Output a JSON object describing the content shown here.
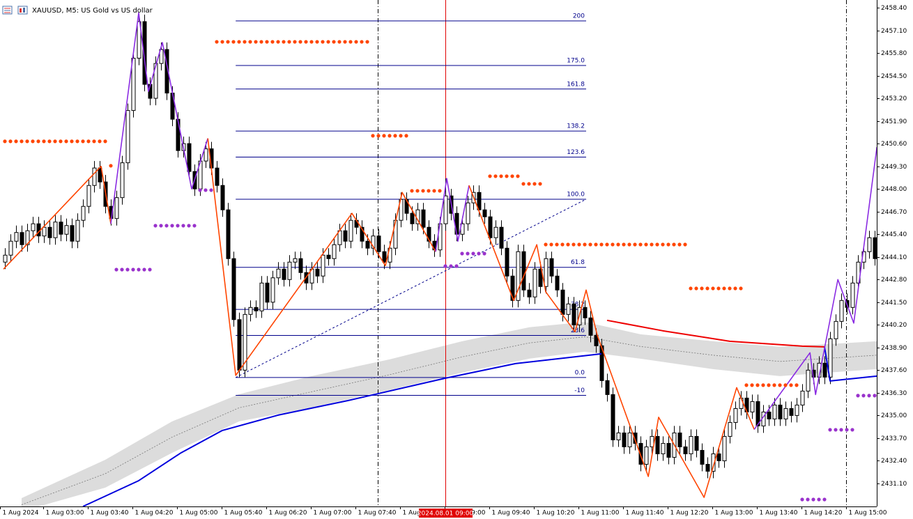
{
  "chart_data": {
    "type": "candlestick",
    "title": "XAUUSD, M5:  US Gold vs US dollar",
    "categories": [
      "1 Aug 2024",
      null,
      null,
      null,
      null,
      null,
      null,
      "1 Aug 03:00",
      null,
      null,
      null,
      null,
      null,
      null,
      null,
      "1 Aug 03:40",
      null,
      null,
      null,
      null,
      null,
      null,
      null,
      "1 Aug 04:20",
      null,
      null,
      null,
      null,
      null,
      null,
      null,
      "1 Aug 05:00",
      null,
      null,
      null,
      null,
      null,
      null,
      null,
      "1 Aug 05:40",
      null,
      null,
      null,
      null,
      null,
      null,
      null,
      "1 Aug 06:20",
      null,
      null,
      null,
      null,
      null,
      null,
      null,
      "1 Aug 07:00",
      null,
      null,
      null,
      null,
      null,
      null,
      null,
      "1 Aug 07:40",
      null,
      null,
      null,
      null,
      null,
      null,
      null,
      "1 Aug 08:20",
      null,
      null,
      null,
      null,
      null,
      null,
      null,
      "1 Aug 09:00",
      null,
      null,
      null,
      null,
      null,
      null,
      null,
      "1 Aug 09:40",
      null,
      null,
      null,
      null,
      null,
      null,
      null,
      "1 Aug 10:20",
      null,
      null,
      null,
      null,
      null,
      null,
      null,
      "1 Aug 11:00",
      null,
      null,
      null,
      null,
      null,
      null,
      null,
      "1 Aug 11:40",
      null,
      null,
      null,
      null,
      null,
      null,
      null,
      "1 Aug 12:20",
      null,
      null,
      null,
      null,
      null,
      null,
      null,
      "1 Aug 13:00",
      null,
      null,
      null,
      null,
      null,
      null,
      null,
      "1 Aug 13:40",
      null,
      null,
      null,
      null,
      null,
      null,
      null,
      "1 Aug 14:20",
      null,
      null,
      null,
      null,
      null,
      null,
      null,
      "1 Aug 15:00",
      null,
      null,
      null,
      null,
      null
    ],
    "open": [
      2443.8,
      2444.2,
      2445.0,
      2445.5,
      2444.8,
      2445.6,
      2446.0,
      2445.3,
      2445.8,
      2445.2,
      2446.1,
      2445.4,
      2445.9,
      2445.0,
      2446.2,
      2447.0,
      2448.2,
      2449.2,
      2448.4,
      2447.0,
      2446.3,
      2447.5,
      2449.5,
      2452.5,
      2455.5,
      2457.6,
      2454.0,
      2453.2,
      2455.2,
      2456.0,
      2453.5,
      2452.0,
      2450.2,
      2450.6,
      2449.0,
      2448.0,
      2449.6,
      2450.3,
      2449.2,
      2448.2,
      2446.8,
      2444.0,
      2440.5,
      2437.6,
      2440.8,
      2441.2,
      2441.0,
      2442.6,
      2441.5,
      2442.9,
      2443.4,
      2442.8,
      2443.8,
      2444.0,
      2443.2,
      2442.6,
      2443.4,
      2443.0,
      2444.2,
      2444.0,
      2444.8,
      2445.6,
      2445.0,
      2446.2,
      2445.8,
      2445.0,
      2444.6,
      2445.3,
      2444.4,
      2443.8,
      2444.6,
      2446.2,
      2447.4,
      2446.6,
      2446.0,
      2446.8,
      2445.8,
      2445.0,
      2444.5,
      2446.0,
      2447.6,
      2446.6,
      2445.4,
      2446.0,
      2447.2,
      2447.8,
      2446.8,
      2446.4,
      2445.2,
      2445.8,
      2444.6,
      2443.0,
      2441.6,
      2444.4,
      2442.2,
      2441.8,
      2443.4,
      2442.4,
      2444.0,
      2443.0,
      2442.2,
      2440.8,
      2441.4,
      2440.2,
      2441.2,
      2440.6,
      2439.6,
      2439.0,
      2437.0,
      2436.2,
      2433.6,
      2434.0,
      2433.2,
      2434.0,
      2433.4,
      2432.2,
      2433.2,
      2433.8,
      2432.8,
      2433.4,
      2432.6,
      2434.0,
      2433.2,
      2432.8,
      2433.8,
      2433.0,
      2432.2,
      2431.8,
      2432.8,
      2432.4,
      2433.8,
      2434.6,
      2435.4,
      2436.0,
      2435.2,
      2435.8,
      2434.4,
      2435.2,
      2434.8,
      2435.6,
      2434.8,
      2435.4,
      2435.0,
      2435.6,
      2436.4,
      2437.6,
      2437.2,
      2438.0,
      2437.2,
      2439.4,
      2440.4,
      2441.6,
      2441.2,
      2442.6,
      2443.8,
      2444.4,
      2445.2
    ],
    "high": [
      2444.6,
      2445.4,
      2445.9,
      2445.9,
      2446.0,
      2446.4,
      2446.4,
      2446.2,
      2446.2,
      2446.5,
      2446.5,
      2446.3,
      2446.3,
      2446.6,
      2447.4,
      2448.6,
      2449.6,
      2449.6,
      2448.8,
      2447.4,
      2447.9,
      2449.9,
      2452.9,
      2455.9,
      2458.0,
      2458.0,
      2454.4,
      2455.6,
      2456.4,
      2456.4,
      2453.9,
      2452.4,
      2451.0,
      2451.0,
      2449.4,
      2450.0,
      2450.7,
      2450.7,
      2449.6,
      2448.6,
      2447.2,
      2444.4,
      2440.9,
      2441.2,
      2441.6,
      2441.6,
      2443.0,
      2443.0,
      2443.3,
      2443.8,
      2443.8,
      2444.2,
      2444.4,
      2444.4,
      2443.6,
      2443.8,
      2443.8,
      2444.6,
      2444.6,
      2445.2,
      2446.0,
      2446.0,
      2446.6,
      2446.6,
      2446.2,
      2445.4,
      2445.7,
      2445.7,
      2444.8,
      2445.0,
      2446.6,
      2447.8,
      2447.8,
      2447.0,
      2447.2,
      2447.2,
      2446.2,
      2445.4,
      2446.4,
      2448.6,
      2448.0,
      2447.0,
      2446.4,
      2447.6,
      2448.2,
      2448.2,
      2447.2,
      2446.8,
      2446.2,
      2446.2,
      2445.0,
      2443.4,
      2444.8,
      2444.8,
      2442.6,
      2443.8,
      2443.8,
      2444.4,
      2444.4,
      2443.4,
      2442.6,
      2441.8,
      2441.8,
      2441.6,
      2441.6,
      2441.0,
      2440.0,
      2439.4,
      2437.4,
      2436.6,
      2434.4,
      2434.4,
      2434.4,
      2434.4,
      2433.8,
      2433.6,
      2434.2,
      2434.2,
      2433.8,
      2433.8,
      2434.4,
      2434.4,
      2433.6,
      2434.2,
      2434.2,
      2433.4,
      2432.6,
      2433.2,
      2433.2,
      2434.2,
      2435.0,
      2435.8,
      2436.4,
      2436.4,
      2436.2,
      2436.2,
      2435.6,
      2435.6,
      2436.0,
      2436.0,
      2435.8,
      2435.8,
      2436.0,
      2436.8,
      2438.0,
      2438.0,
      2438.4,
      2438.4,
      2439.8,
      2440.8,
      2442.0,
      2442.0,
      2443.0,
      2444.2,
      2444.8,
      2445.6,
      2445.6
    ],
    "low": [
      2443.4,
      2443.8,
      2444.6,
      2444.4,
      2444.4,
      2445.2,
      2444.9,
      2444.9,
      2444.8,
      2444.8,
      2445.0,
      2445.0,
      2444.6,
      2444.6,
      2445.8,
      2446.6,
      2447.8,
      2448.0,
      2446.6,
      2445.9,
      2445.9,
      2447.1,
      2449.1,
      2452.1,
      2455.1,
      2453.6,
      2452.8,
      2452.8,
      2454.8,
      2453.1,
      2451.6,
      2449.8,
      2449.8,
      2448.6,
      2447.6,
      2447.6,
      2449.2,
      2448.8,
      2447.8,
      2446.4,
      2443.6,
      2440.1,
      2437.2,
      2437.2,
      2440.4,
      2440.6,
      2440.6,
      2441.1,
      2441.1,
      2442.5,
      2442.4,
      2442.4,
      2443.4,
      2442.8,
      2442.2,
      2442.2,
      2442.6,
      2442.6,
      2443.6,
      2443.6,
      2444.4,
      2444.6,
      2444.6,
      2445.4,
      2444.6,
      2444.2,
      2444.2,
      2444.0,
      2443.4,
      2443.4,
      2444.2,
      2445.8,
      2446.2,
      2445.6,
      2445.6,
      2445.4,
      2444.6,
      2444.1,
      2444.1,
      2445.6,
      2446.2,
      2445.0,
      2445.0,
      2445.6,
      2446.8,
      2446.4,
      2446.0,
      2444.8,
      2444.8,
      2444.2,
      2442.6,
      2441.2,
      2441.2,
      2441.8,
      2441.4,
      2441.4,
      2442.0,
      2442.0,
      2442.6,
      2441.8,
      2440.4,
      2440.4,
      2439.8,
      2439.8,
      2440.2,
      2439.2,
      2438.6,
      2436.6,
      2435.8,
      2433.2,
      2433.2,
      2432.8,
      2432.8,
      2433.0,
      2431.8,
      2431.8,
      2432.8,
      2432.4,
      2432.4,
      2432.2,
      2432.2,
      2432.8,
      2432.4,
      2432.4,
      2432.6,
      2431.8,
      2431.4,
      2431.4,
      2432.0,
      2432.0,
      2433.4,
      2434.2,
      2435.0,
      2434.8,
      2434.8,
      2434.0,
      2434.0,
      2434.4,
      2434.4,
      2434.4,
      2434.4,
      2434.6,
      2434.6,
      2435.2,
      2436.0,
      2436.8,
      2436.8,
      2436.8,
      2436.8,
      2439.0,
      2440.0,
      2440.8,
      2440.8,
      2442.2,
      2443.4,
      2444.0,
      2443.6
    ],
    "close": [
      2444.2,
      2445.0,
      2445.5,
      2444.8,
      2445.6,
      2446.0,
      2445.3,
      2445.8,
      2445.2,
      2446.1,
      2445.4,
      2445.9,
      2445.0,
      2446.2,
      2447.0,
      2448.2,
      2449.2,
      2448.4,
      2447.0,
      2446.3,
      2447.5,
      2449.5,
      2452.5,
      2455.5,
      2457.6,
      2454.0,
      2453.2,
      2455.2,
      2456.0,
      2453.5,
      2452.0,
      2450.2,
      2450.6,
      2449.0,
      2448.0,
      2449.6,
      2450.3,
      2449.2,
      2448.2,
      2446.8,
      2444.0,
      2440.5,
      2437.6,
      2440.8,
      2441.2,
      2441.0,
      2442.6,
      2441.5,
      2442.9,
      2443.4,
      2442.8,
      2443.8,
      2444.0,
      2443.2,
      2442.6,
      2443.4,
      2443.0,
      2444.2,
      2444.0,
      2444.8,
      2445.6,
      2445.0,
      2446.2,
      2445.8,
      2445.0,
      2444.6,
      2445.3,
      2444.4,
      2443.8,
      2444.6,
      2446.2,
      2447.4,
      2446.6,
      2446.0,
      2446.8,
      2445.8,
      2445.0,
      2444.5,
      2446.0,
      2447.6,
      2446.6,
      2445.4,
      2446.0,
      2447.2,
      2447.8,
      2446.8,
      2446.4,
      2445.2,
      2445.8,
      2444.6,
      2443.0,
      2441.6,
      2444.4,
      2442.2,
      2441.8,
      2443.4,
      2442.4,
      2444.0,
      2443.0,
      2442.2,
      2440.8,
      2441.4,
      2440.2,
      2441.2,
      2440.6,
      2439.6,
      2439.0,
      2437.0,
      2436.2,
      2433.6,
      2434.0,
      2433.2,
      2434.0,
      2433.4,
      2432.2,
      2433.2,
      2433.8,
      2432.8,
      2433.4,
      2432.6,
      2434.0,
      2433.2,
      2432.8,
      2433.8,
      2433.0,
      2432.2,
      2431.8,
      2432.8,
      2432.4,
      2433.8,
      2434.6,
      2435.4,
      2436.0,
      2435.2,
      2435.8,
      2434.4,
      2435.2,
      2434.8,
      2435.6,
      2434.8,
      2435.4,
      2435.0,
      2435.6,
      2436.4,
      2437.6,
      2437.2,
      2438.0,
      2437.2,
      2439.4,
      2440.4,
      2441.6,
      2441.2,
      2442.6,
      2443.8,
      2444.4,
      2445.2,
      2444.0
    ],
    "up_color": "#ffffff",
    "down_color": "#000000",
    "ylim": [
      2429.78,
      2458.84
    ],
    "yticks": [
      {
        "value": 2458.4,
        "label": "2458.40"
      },
      {
        "value": 2457.1,
        "label": "2457.10"
      },
      {
        "value": 2455.8,
        "label": "2455.80"
      },
      {
        "value": 2454.5,
        "label": "2454.50"
      },
      {
        "value": 2453.2,
        "label": "2453.20"
      },
      {
        "value": 2451.9,
        "label": "2451.90"
      },
      {
        "value": 2450.6,
        "label": "2450.60"
      },
      {
        "value": 2449.3,
        "label": "2449.30"
      },
      {
        "value": 2448.0,
        "label": "2448.00"
      },
      {
        "value": 2446.7,
        "label": "2446.70"
      },
      {
        "value": 2445.4,
        "label": "2445.40"
      },
      {
        "value": 2444.1,
        "label": "2444.10"
      },
      {
        "value": 2442.8,
        "label": "2442.80"
      },
      {
        "value": 2441.5,
        "label": "2441.50"
      },
      {
        "value": 2440.2,
        "label": "2440.20"
      },
      {
        "value": 2438.9,
        "label": "2438.90"
      },
      {
        "value": 2437.6,
        "label": "2437.60"
      },
      {
        "value": 2436.3,
        "label": "2436.30"
      },
      {
        "value": 2435.0,
        "label": "2435.00"
      },
      {
        "value": 2433.7,
        "label": "2433.70"
      },
      {
        "value": 2432.4,
        "label": "2432.40"
      },
      {
        "value": 2431.1,
        "label": "2431.10"
      }
    ],
    "cursor": {
      "index": 79,
      "label": "2024.08.01 09:00",
      "color": "#e00000"
    },
    "separators": [
      67,
      151
    ],
    "band": {
      "color": "#dcdcdc",
      "x": [
        3,
        18,
        30,
        42,
        55,
        69,
        82,
        94,
        104,
        114,
        127,
        139,
        156.4
      ],
      "upper": [
        2430.26,
        2432.46,
        2434.66,
        2436.22,
        2437.26,
        2438.22,
        2439.26,
        2440.06,
        2440.37,
        2439.66,
        2439.26,
        2438.94,
        2439.26
      ],
      "lower": [
        2429.5,
        2430.86,
        2432.86,
        2434.66,
        2435.46,
        2436.46,
        2437.46,
        2438.26,
        2438.66,
        2438.26,
        2437.66,
        2437.26,
        2437.66
      ]
    },
    "lines": [
      {
        "color": "#0000dd",
        "x": [
          14,
          24,
          31.6,
          39,
          49,
          61.6,
          79,
          91.6,
          107
        ],
        "values": [
          2429.78,
          2431.26,
          2432.86,
          2434.14,
          2435.02,
          2435.86,
          2437.14,
          2437.98,
          2438.54
        ]
      },
      {
        "color": "#ee0000",
        "x": [
          108,
          118,
          130,
          143,
          147
        ],
        "values": [
          2440.46,
          2439.86,
          2439.26,
          2438.98,
          2438.94
        ]
      },
      {
        "color": "#0000dd",
        "x": [
          147,
          148,
          156.4
        ],
        "values": [
          2438.94,
          2436.98,
          2437.26
        ]
      }
    ],
    "zigzag": [
      {
        "color": "#ff4500",
        "x": [
          -0.25,
          17.25,
          19
        ],
        "values": [
          2443.4,
          2449.3,
          2446.0
        ]
      },
      {
        "color": "#8a2be2",
        "x": [
          19,
          24,
          25.75,
          28.25,
          33.5,
          36.4
        ],
        "values": [
          2446.0,
          2458.1,
          2453.6,
          2456.4,
          2448.0,
          2450.9
        ]
      },
      {
        "color": "#ff4500",
        "x": [
          36.4,
          41.4,
          62.25,
          68.25,
          71.25,
          77.25
        ],
        "values": [
          2450.9,
          2437.3,
          2446.6,
          2443.6,
          2447.8,
          2444.4
        ]
      },
      {
        "color": "#8a2be2",
        "x": [
          77.25,
          79.25,
          81.25,
          83.25
        ],
        "values": [
          2444.4,
          2448.6,
          2445.0,
          2448.2
        ]
      },
      {
        "color": "#ff4500",
        "x": [
          83.25,
          91.25,
          95.4,
          97,
          102.25,
          104.25,
          106.25,
          115.4,
          117.25,
          125.4,
          131.25,
          134.4
        ],
        "values": [
          2448.2,
          2441.6,
          2444.8,
          2442.1,
          2439.8,
          2442.2,
          2439.6,
          2431.5,
          2434.9,
          2430.3,
          2436.6,
          2434.2
        ]
      },
      {
        "color": "#8a2be2",
        "x": [
          134.4,
          144.4,
          145.4,
          149.4,
          152.25,
          156.4
        ],
        "values": [
          2434.2,
          2438.6,
          2436.2,
          2442.8,
          2440.3,
          2450.4
        ]
      }
    ],
    "fib": {
      "color": "#00008b",
      "from": 41.4,
      "to": 104.25,
      "price_0": 2437.18,
      "price_100": 2447.41,
      "levels": [
        200,
        {
          "value": 175,
          "label": "175.0"
        },
        {
          "value": 161.8,
          "label": "161.8"
        },
        {
          "value": 138.2,
          "label": "138.2"
        },
        {
          "value": 123.6,
          "label": "123.6"
        },
        {
          "value": 100,
          "label": "100.0"
        },
        {
          "value": 61.8,
          "label": "61.8"
        },
        {
          "value": 38.2,
          "label": "38.2"
        },
        {
          "value": 23.6,
          "label": "23.6"
        },
        {
          "value": 0,
          "label": "0.0"
        },
        -10
      ]
    },
    "dots": [
      {
        "color": "#ff4500",
        "price": 2456.44,
        "from": 38,
        "to": 65
      },
      {
        "color": "#ff4500",
        "price": 2450.73,
        "from": 0,
        "to": 18
      },
      {
        "color": "#ff4500",
        "price": 2449.33,
        "from": 19,
        "to": 19
      },
      {
        "color": "#ff4500",
        "price": 2451.05,
        "from": 66,
        "to": 72
      },
      {
        "color": "#ff4500",
        "price": 2447.89,
        "from": 73,
        "to": 78
      },
      {
        "color": "#ff4500",
        "price": 2448.73,
        "from": 87,
        "to": 92
      },
      {
        "color": "#ff4500",
        "price": 2448.29,
        "from": 93,
        "to": 96
      },
      {
        "color": "#ff4500",
        "price": 2444.81,
        "from": 97,
        "to": 122
      },
      {
        "color": "#ff4500",
        "price": 2442.29,
        "from": 123,
        "to": 132
      },
      {
        "color": "#ff4500",
        "price": 2436.74,
        "from": 133,
        "to": 142
      },
      {
        "color": "#9932cc",
        "price": 2443.37,
        "from": 20,
        "to": 26
      },
      {
        "color": "#9932cc",
        "price": 2445.89,
        "from": 27,
        "to": 34
      },
      {
        "color": "#9932cc",
        "price": 2447.93,
        "from": 35,
        "to": 37
      },
      {
        "color": "#9932cc",
        "price": 2443.57,
        "from": 79,
        "to": 81
      },
      {
        "color": "#9932cc",
        "price": 2444.29,
        "from": 82,
        "to": 86
      },
      {
        "color": "#9932cc",
        "price": 2434.18,
        "from": 148,
        "to": 152
      },
      {
        "color": "#9932cc",
        "price": 2436.14,
        "from": 153,
        "to": 156
      },
      {
        "color": "#9932cc",
        "price": 2430.18,
        "from": 143,
        "to": 147
      }
    ]
  }
}
